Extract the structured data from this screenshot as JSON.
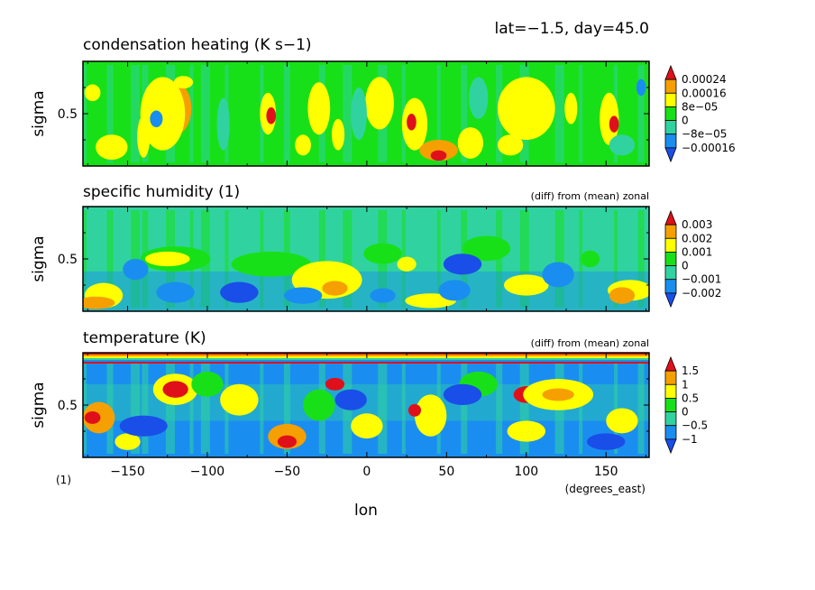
{
  "header": {
    "text": "lat=−1.5, day=45.0"
  },
  "x_axis": {
    "label": "lon",
    "units": "(degrees_east)",
    "range": [
      -178,
      177
    ],
    "ticks": [
      -150,
      -100,
      -50,
      0,
      50,
      100,
      150
    ],
    "tick_labels": [
      "−150",
      "−100",
      "−50",
      "0",
      "50",
      "100",
      "150"
    ],
    "y_units": "(1)"
  },
  "colors": {
    "red": "#e0101a",
    "orange": "#f5a000",
    "yellow": "#ffff00",
    "green": "#18e018",
    "cyan": "#30d3a0",
    "blue": "#1a8ef0",
    "darkblue": "#1a4ee8"
  },
  "chart_data": [
    {
      "type": "heatmap",
      "title": "condensation heating (K s−1)",
      "subtitle": "",
      "ylabel": "sigma",
      "ytick_labels": [
        "0.5"
      ],
      "ylim": [
        1.0,
        0.0
      ],
      "xlim": [
        -178,
        177
      ],
      "colorbar": {
        "labels": [
          "0.00024",
          "0.00016",
          "8e−05",
          "0",
          "−8e−05",
          "−0.00016"
        ],
        "bands": [
          "red",
          "orange",
          "yellow",
          "green",
          "cyan",
          "blue",
          "darkblue"
        ]
      },
      "background": "green",
      "blobs": [
        {
          "lon": -125,
          "sigma": 0.38,
          "rlon": 5,
          "rsig": 0.09,
          "c": "red"
        },
        {
          "lon": -120,
          "sigma": 0.45,
          "rlon": 10,
          "rsig": 0.25,
          "c": "orange"
        },
        {
          "lon": -128,
          "sigma": 0.5,
          "rlon": 14,
          "rsig": 0.35,
          "c": "yellow"
        },
        {
          "lon": -132,
          "sigma": 0.55,
          "rlon": 4,
          "rsig": 0.08,
          "c": "blue"
        },
        {
          "lon": -160,
          "sigma": 0.82,
          "rlon": 10,
          "rsig": 0.12,
          "c": "yellow"
        },
        {
          "lon": -140,
          "sigma": 0.72,
          "rlon": 4,
          "rsig": 0.2,
          "c": "yellow"
        },
        {
          "lon": -172,
          "sigma": 0.3,
          "rlon": 5,
          "rsig": 0.08,
          "c": "yellow"
        },
        {
          "lon": -115,
          "sigma": 0.2,
          "rlon": 6,
          "rsig": 0.06,
          "c": "yellow"
        },
        {
          "lon": -62,
          "sigma": 0.5,
          "rlon": 5,
          "rsig": 0.2,
          "c": "yellow"
        },
        {
          "lon": -60,
          "sigma": 0.52,
          "rlon": 3,
          "rsig": 0.08,
          "c": "red"
        },
        {
          "lon": -30,
          "sigma": 0.35,
          "rlon": 4,
          "rsig": 0.07,
          "c": "red"
        },
        {
          "lon": -30,
          "sigma": 0.45,
          "rlon": 7,
          "rsig": 0.25,
          "c": "yellow"
        },
        {
          "lon": -18,
          "sigma": 0.7,
          "rlon": 4,
          "rsig": 0.15,
          "c": "yellow"
        },
        {
          "lon": -40,
          "sigma": 0.8,
          "rlon": 5,
          "rsig": 0.1,
          "c": "yellow"
        },
        {
          "lon": 8,
          "sigma": 0.35,
          "rlon": 5,
          "rsig": 0.12,
          "c": "red"
        },
        {
          "lon": 8,
          "sigma": 0.4,
          "rlon": 9,
          "rsig": 0.25,
          "c": "yellow"
        },
        {
          "lon": 30,
          "sigma": 0.6,
          "rlon": 8,
          "rsig": 0.25,
          "c": "yellow"
        },
        {
          "lon": 28,
          "sigma": 0.58,
          "rlon": 3,
          "rsig": 0.08,
          "c": "red"
        },
        {
          "lon": 45,
          "sigma": 0.85,
          "rlon": 12,
          "rsig": 0.1,
          "c": "orange"
        },
        {
          "lon": 45,
          "sigma": 0.9,
          "rlon": 5,
          "rsig": 0.05,
          "c": "red"
        },
        {
          "lon": 65,
          "sigma": 0.78,
          "rlon": 8,
          "rsig": 0.15,
          "c": "yellow"
        },
        {
          "lon": 100,
          "sigma": 0.3,
          "rlon": 6,
          "rsig": 0.08,
          "c": "red"
        },
        {
          "lon": 105,
          "sigma": 0.35,
          "rlon": 10,
          "rsig": 0.15,
          "c": "orange"
        },
        {
          "lon": 100,
          "sigma": 0.45,
          "rlon": 18,
          "rsig": 0.3,
          "c": "yellow"
        },
        {
          "lon": 90,
          "sigma": 0.8,
          "rlon": 8,
          "rsig": 0.1,
          "c": "yellow"
        },
        {
          "lon": 128,
          "sigma": 0.45,
          "rlon": 4,
          "rsig": 0.15,
          "c": "yellow"
        },
        {
          "lon": 152,
          "sigma": 0.55,
          "rlon": 6,
          "rsig": 0.25,
          "c": "yellow"
        },
        {
          "lon": 155,
          "sigma": 0.6,
          "rlon": 3,
          "rsig": 0.08,
          "c": "red"
        },
        {
          "lon": 160,
          "sigma": 0.8,
          "rlon": 8,
          "rsig": 0.1,
          "c": "cyan"
        },
        {
          "lon": 172,
          "sigma": 0.25,
          "rlon": 3,
          "rsig": 0.08,
          "c": "blue"
        },
        {
          "lon": -90,
          "sigma": 0.6,
          "rlon": 4,
          "rsig": 0.25,
          "c": "cyan"
        },
        {
          "lon": 70,
          "sigma": 0.35,
          "rlon": 6,
          "rsig": 0.2,
          "c": "cyan"
        },
        {
          "lon": -5,
          "sigma": 0.5,
          "rlon": 5,
          "rsig": 0.25,
          "c": "cyan"
        }
      ]
    },
    {
      "type": "heatmap",
      "title": "specific humidity (1)",
      "subtitle": "(diff) from (mean) zonal",
      "ylabel": "sigma",
      "ytick_labels": [
        "0.5"
      ],
      "ylim": [
        1.0,
        0.0
      ],
      "xlim": [
        -178,
        177
      ],
      "colorbar": {
        "labels": [
          "0.003",
          "0.002",
          "0.001",
          "0",
          "−0.001",
          "−0.002"
        ],
        "bands": [
          "red",
          "orange",
          "yellow",
          "green",
          "cyan",
          "blue",
          "darkblue"
        ]
      },
      "background": "cyan",
      "blobs": [
        {
          "lon": -120,
          "sigma": 0.5,
          "rlon": 22,
          "rsig": 0.12,
          "c": "green"
        },
        {
          "lon": -125,
          "sigma": 0.5,
          "rlon": 14,
          "rsig": 0.07,
          "c": "yellow"
        },
        {
          "lon": -60,
          "sigma": 0.55,
          "rlon": 25,
          "rsig": 0.12,
          "c": "green"
        },
        {
          "lon": -25,
          "sigma": 0.7,
          "rlon": 22,
          "rsig": 0.18,
          "c": "yellow"
        },
        {
          "lon": -20,
          "sigma": 0.78,
          "rlon": 8,
          "rsig": 0.07,
          "c": "orange"
        },
        {
          "lon": 10,
          "sigma": 0.45,
          "rlon": 12,
          "rsig": 0.1,
          "c": "green"
        },
        {
          "lon": 25,
          "sigma": 0.55,
          "rlon": 6,
          "rsig": 0.07,
          "c": "yellow"
        },
        {
          "lon": 40,
          "sigma": 0.9,
          "rlon": 16,
          "rsig": 0.07,
          "c": "yellow"
        },
        {
          "lon": 75,
          "sigma": 0.4,
          "rlon": 15,
          "rsig": 0.12,
          "c": "green"
        },
        {
          "lon": 100,
          "sigma": 0.75,
          "rlon": 14,
          "rsig": 0.1,
          "c": "yellow"
        },
        {
          "lon": 165,
          "sigma": 0.8,
          "rlon": 14,
          "rsig": 0.1,
          "c": "yellow"
        },
        {
          "lon": 160,
          "sigma": 0.85,
          "rlon": 8,
          "rsig": 0.08,
          "c": "orange"
        },
        {
          "lon": -165,
          "sigma": 0.85,
          "rlon": 12,
          "rsig": 0.12,
          "c": "yellow"
        },
        {
          "lon": -170,
          "sigma": 0.92,
          "rlon": 12,
          "rsig": 0.06,
          "c": "orange"
        },
        {
          "lon": -145,
          "sigma": 0.6,
          "rlon": 8,
          "rsig": 0.1,
          "c": "blue"
        },
        {
          "lon": -120,
          "sigma": 0.82,
          "rlon": 12,
          "rsig": 0.1,
          "c": "blue"
        },
        {
          "lon": -80,
          "sigma": 0.82,
          "rlon": 12,
          "rsig": 0.1,
          "c": "darkblue"
        },
        {
          "lon": 60,
          "sigma": 0.55,
          "rlon": 12,
          "rsig": 0.1,
          "c": "darkblue"
        },
        {
          "lon": 55,
          "sigma": 0.8,
          "rlon": 10,
          "rsig": 0.1,
          "c": "blue"
        },
        {
          "lon": 120,
          "sigma": 0.65,
          "rlon": 10,
          "rsig": 0.12,
          "c": "blue"
        },
        {
          "lon": 10,
          "sigma": 0.85,
          "rlon": 8,
          "rsig": 0.07,
          "c": "blue"
        },
        {
          "lon": -40,
          "sigma": 0.85,
          "rlon": 12,
          "rsig": 0.08,
          "c": "blue"
        },
        {
          "lon": 140,
          "sigma": 0.5,
          "rlon": 6,
          "rsig": 0.08,
          "c": "green"
        }
      ]
    },
    {
      "type": "heatmap",
      "title": "temperature (K)",
      "subtitle": "(diff) from (mean) zonal",
      "ylabel": "sigma",
      "ytick_labels": [
        "0.5"
      ],
      "ylim": [
        1.0,
        0.0
      ],
      "xlim": [
        -178,
        177
      ],
      "colorbar": {
        "labels": [
          "1.5",
          "1",
          "0.5",
          "0",
          "−0.5",
          "−1"
        ],
        "bands": [
          "red",
          "orange",
          "yellow",
          "green",
          "cyan",
          "blue",
          "darkblue"
        ]
      },
      "background": "blue",
      "top_band": true,
      "blobs": [
        {
          "lon": -120,
          "sigma": 0.35,
          "rlon": 14,
          "rsig": 0.15,
          "c": "yellow"
        },
        {
          "lon": -120,
          "sigma": 0.35,
          "rlon": 8,
          "rsig": 0.08,
          "c": "red"
        },
        {
          "lon": -168,
          "sigma": 0.62,
          "rlon": 10,
          "rsig": 0.15,
          "c": "orange"
        },
        {
          "lon": -172,
          "sigma": 0.62,
          "rlon": 5,
          "rsig": 0.06,
          "c": "red"
        },
        {
          "lon": -80,
          "sigma": 0.45,
          "rlon": 12,
          "rsig": 0.15,
          "c": "yellow"
        },
        {
          "lon": -50,
          "sigma": 0.8,
          "rlon": 12,
          "rsig": 0.12,
          "c": "orange"
        },
        {
          "lon": -50,
          "sigma": 0.85,
          "rlon": 6,
          "rsig": 0.06,
          "c": "red"
        },
        {
          "lon": -30,
          "sigma": 0.5,
          "rlon": 10,
          "rsig": 0.15,
          "c": "green"
        },
        {
          "lon": 0,
          "sigma": 0.7,
          "rlon": 10,
          "rsig": 0.12,
          "c": "yellow"
        },
        {
          "lon": 40,
          "sigma": 0.6,
          "rlon": 10,
          "rsig": 0.2,
          "c": "yellow"
        },
        {
          "lon": 30,
          "sigma": 0.55,
          "rlon": 4,
          "rsig": 0.06,
          "c": "red"
        },
        {
          "lon": 100,
          "sigma": 0.4,
          "rlon": 8,
          "rsig": 0.08,
          "c": "red"
        },
        {
          "lon": 120,
          "sigma": 0.4,
          "rlon": 22,
          "rsig": 0.15,
          "c": "yellow"
        },
        {
          "lon": 120,
          "sigma": 0.4,
          "rlon": 10,
          "rsig": 0.06,
          "c": "orange"
        },
        {
          "lon": 100,
          "sigma": 0.75,
          "rlon": 12,
          "rsig": 0.1,
          "c": "yellow"
        },
        {
          "lon": 160,
          "sigma": 0.65,
          "rlon": 10,
          "rsig": 0.12,
          "c": "yellow"
        },
        {
          "lon": -20,
          "sigma": 0.3,
          "rlon": 6,
          "rsig": 0.06,
          "c": "red"
        },
        {
          "lon": -150,
          "sigma": 0.85,
          "rlon": 8,
          "rsig": 0.08,
          "c": "yellow"
        },
        {
          "lon": -100,
          "sigma": 0.3,
          "rlon": 10,
          "rsig": 0.12,
          "c": "green"
        },
        {
          "lon": 70,
          "sigma": 0.3,
          "rlon": 12,
          "rsig": 0.12,
          "c": "green"
        },
        {
          "lon": -140,
          "sigma": 0.7,
          "rlon": 15,
          "rsig": 0.1,
          "c": "darkblue"
        },
        {
          "lon": 60,
          "sigma": 0.4,
          "rlon": 12,
          "rsig": 0.1,
          "c": "darkblue"
        },
        {
          "lon": -10,
          "sigma": 0.45,
          "rlon": 10,
          "rsig": 0.1,
          "c": "darkblue"
        },
        {
          "lon": 150,
          "sigma": 0.85,
          "rlon": 12,
          "rsig": 0.08,
          "c": "darkblue"
        }
      ]
    }
  ]
}
